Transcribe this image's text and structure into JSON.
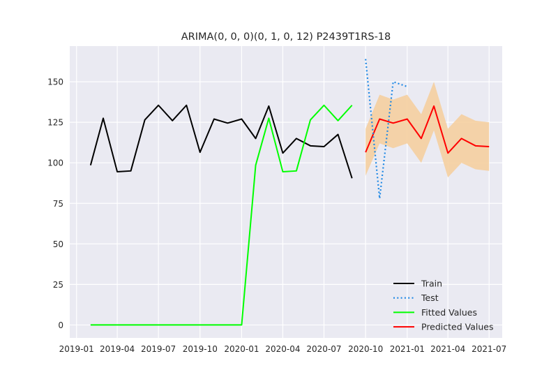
{
  "chart_data": {
    "type": "line",
    "title": "ARIMA(0, 0, 0)(0, 1, 0, 12) P2439T1RS-18",
    "xlabel": "",
    "ylabel": "",
    "x_ticks": [
      "2019-01",
      "2019-04",
      "2019-07",
      "2019-10",
      "2020-01",
      "2020-04",
      "2020-07",
      "2020-10",
      "2021-01",
      "2021-04",
      "2021-07"
    ],
    "y_ticks": [
      0,
      25,
      50,
      75,
      100,
      125,
      150
    ],
    "xlim": [
      "2018-12-17",
      "2021-07-30"
    ],
    "ylim": [
      -8,
      172
    ],
    "grid": true,
    "legend_position": "lower-right",
    "background_color": "#eaeaf2",
    "confidence_band": {
      "color": "#f5cfa0",
      "x": [
        "2020-10-01",
        "2020-11-01",
        "2020-12-01",
        "2021-01-01",
        "2021-02-01",
        "2021-03-01",
        "2021-04-01",
        "2021-05-01",
        "2021-06-01",
        "2021-07-01"
      ],
      "upper": [
        121,
        142,
        139,
        142,
        130,
        150,
        121,
        130,
        126,
        125
      ],
      "lower": [
        92,
        112,
        109,
        112,
        100,
        120,
        91,
        100,
        96,
        95
      ]
    },
    "series": [
      {
        "name": "Train",
        "color": "#000000",
        "style": "solid",
        "x": [
          "2019-02-01",
          "2019-03-01",
          "2019-04-01",
          "2019-05-01",
          "2019-06-01",
          "2019-07-01",
          "2019-08-01",
          "2019-09-01",
          "2019-10-01",
          "2019-11-01",
          "2019-12-01",
          "2020-01-01",
          "2020-02-01",
          "2020-03-01",
          "2020-04-01",
          "2020-05-01",
          "2020-06-01",
          "2020-07-01",
          "2020-08-01",
          "2020-09-01"
        ],
        "values": [
          98.5,
          127.5,
          94.5,
          95,
          126.5,
          135.5,
          126,
          135.5,
          106.5,
          127,
          124.5,
          127,
          115,
          135,
          106,
          115,
          110.5,
          110,
          117.5,
          90.5
        ]
      },
      {
        "name": "Test",
        "color": "#1e88e5",
        "style": "dotted",
        "x": [
          "2020-10-01",
          "2020-11-01",
          "2020-12-01",
          "2021-01-01"
        ],
        "values": [
          164,
          78,
          150,
          147
        ]
      },
      {
        "name": "Fitted Values",
        "color": "#00ff00",
        "style": "solid",
        "x": [
          "2019-02-01",
          "2019-03-01",
          "2019-04-01",
          "2019-05-01",
          "2019-06-01",
          "2019-07-01",
          "2019-08-01",
          "2019-09-01",
          "2019-10-01",
          "2019-11-01",
          "2019-12-01",
          "2020-01-01",
          "2020-02-01",
          "2020-03-01",
          "2020-04-01",
          "2020-05-01",
          "2020-06-01",
          "2020-07-01",
          "2020-08-01",
          "2020-09-01"
        ],
        "values": [
          0,
          0,
          0,
          0,
          0,
          0,
          0,
          0,
          0,
          0,
          0,
          0,
          98.5,
          127.5,
          94.5,
          95,
          126.5,
          135.5,
          126,
          135.5
        ]
      },
      {
        "name": "Predicted Values",
        "color": "#ff0000",
        "style": "solid",
        "x": [
          "2020-10-01",
          "2020-11-01",
          "2020-12-01",
          "2021-01-01",
          "2021-02-01",
          "2021-03-01",
          "2021-04-01",
          "2021-05-01",
          "2021-06-01",
          "2021-07-01"
        ],
        "values": [
          106.5,
          127,
          124.5,
          127,
          115,
          135,
          106,
          115,
          110.5,
          110
        ]
      }
    ]
  }
}
